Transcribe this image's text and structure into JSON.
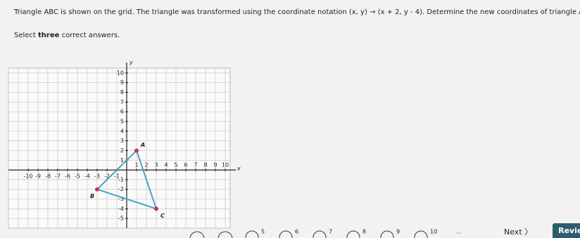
{
  "header": {
    "question": "Triangle ABC is shown on the grid. The triangle was transformed using the coordinate notation (x, y) → (x + 2, y - 4). Determine the new coordinates of triangle A'B'C'.",
    "instruction_prefix": "Select ",
    "instruction_bold": "three",
    "instruction_suffix": " correct answers."
  },
  "graph": {
    "x_label": "x",
    "y_label": "y",
    "xticks": [
      -10,
      -9,
      -8,
      -7,
      -6,
      -5,
      -4,
      -3,
      -2,
      -1,
      1,
      2,
      3,
      4,
      5,
      6,
      7,
      8,
      9,
      10
    ],
    "yticks": [
      -5,
      -4,
      -3,
      -2,
      -1,
      1,
      2,
      3,
      4,
      5,
      6,
      7,
      8,
      9,
      10
    ],
    "xlim": [
      -12,
      10.5
    ],
    "ylim": [
      -6,
      10.5
    ],
    "vertices": [
      {
        "label": "A",
        "x": 1,
        "y": 2
      },
      {
        "label": "B",
        "x": -3,
        "y": -2
      },
      {
        "label": "C",
        "x": 3,
        "y": -4
      }
    ],
    "color": "#4aa3c7"
  },
  "pagination": {
    "pages": [
      "5",
      "6",
      "7",
      "8",
      "9",
      "10"
    ],
    "ellipsis": "...",
    "next": "Next",
    "review": "Review"
  }
}
